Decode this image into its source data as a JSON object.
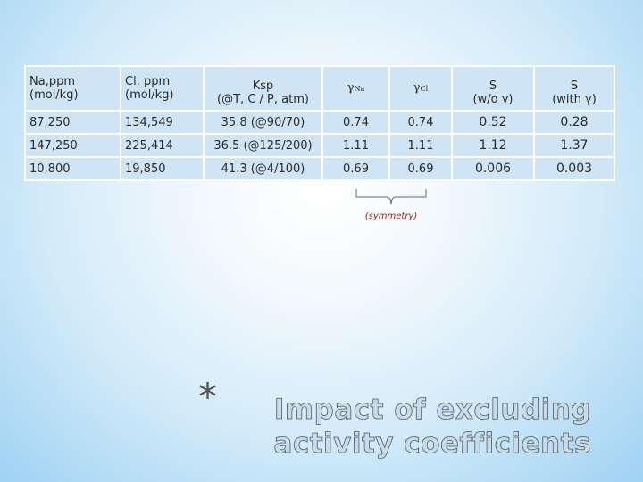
{
  "table": {
    "headers": [
      {
        "line1": "Na,ppm",
        "line2": "(mol/kg)"
      },
      {
        "line1": "Cl, ppm",
        "line2": "(mol/kg)"
      },
      {
        "line1": "Ksp",
        "line2": "(@T, C / P, atm)"
      },
      {
        "symbol": "γ",
        "sub": "Na"
      },
      {
        "symbol": "γ",
        "sub": "Cl"
      },
      {
        "line1": "S",
        "line2": "(w/o γ)"
      },
      {
        "line1": "S",
        "line2": "(with γ)"
      }
    ],
    "rows": [
      [
        "87,250",
        "134,549",
        "35.8 (@90/70)",
        "0.74",
        "0.74",
        "0.52",
        "0.28"
      ],
      [
        "147,250",
        "225,414",
        "36.5 (@125/200)",
        "1.11",
        "1.11",
        "1.12",
        "1.37"
      ],
      [
        "10,800",
        "19,850",
        "41.3 (@4/100)",
        "0.69",
        "0.69",
        "0.006",
        "0.003"
      ]
    ]
  },
  "annotation": "(symmetry)",
  "title": {
    "bullet": "*",
    "text": "Impact of excluding activity coefficients"
  }
}
